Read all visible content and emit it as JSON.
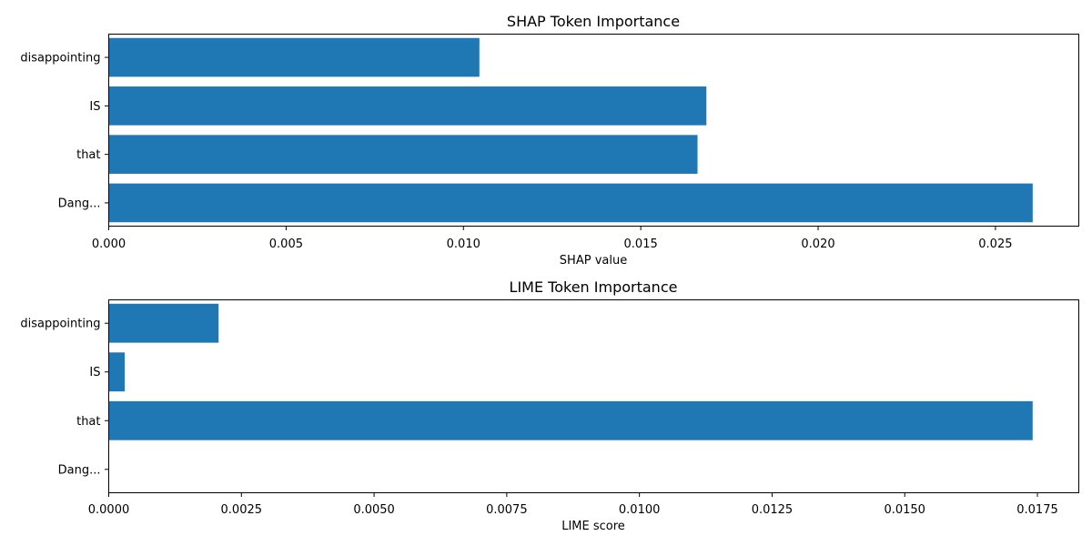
{
  "colors": {
    "bar": "#1f77b4",
    "axis": "#000000",
    "background": "#ffffff"
  },
  "chart_data": [
    {
      "type": "bar",
      "orientation": "horizontal",
      "title": "SHAP Token Importance",
      "xlabel": "SHAP value",
      "ylabel": "",
      "categories": [
        "disappointing",
        "IS",
        "that",
        "Dang..."
      ],
      "values": [
        0.01045,
        0.01685,
        0.0166,
        0.02605
      ],
      "xlim": [
        0,
        0.02735
      ],
      "xticks": [
        0.0,
        0.005,
        0.01,
        0.015,
        0.02,
        0.025
      ],
      "xtick_labels": [
        "0.000",
        "0.005",
        "0.010",
        "0.015",
        "0.020",
        "0.025"
      ],
      "grid": false,
      "legend": "none"
    },
    {
      "type": "bar",
      "orientation": "horizontal",
      "title": "LIME Token Importance",
      "xlabel": "LIME score",
      "ylabel": "",
      "categories": [
        "disappointing",
        "IS",
        "that",
        "Dang..."
      ],
      "values": [
        0.00207,
        0.0003,
        0.01741,
        0.0
      ],
      "xlim": [
        0,
        0.01828
      ],
      "xticks": [
        0.0,
        0.0025,
        0.005,
        0.0075,
        0.01,
        0.0125,
        0.015,
        0.0175
      ],
      "xtick_labels": [
        "0.0000",
        "0.0025",
        "0.0050",
        "0.0075",
        "0.0100",
        "0.0125",
        "0.0150",
        "0.0175"
      ],
      "grid": false,
      "legend": "none"
    }
  ]
}
